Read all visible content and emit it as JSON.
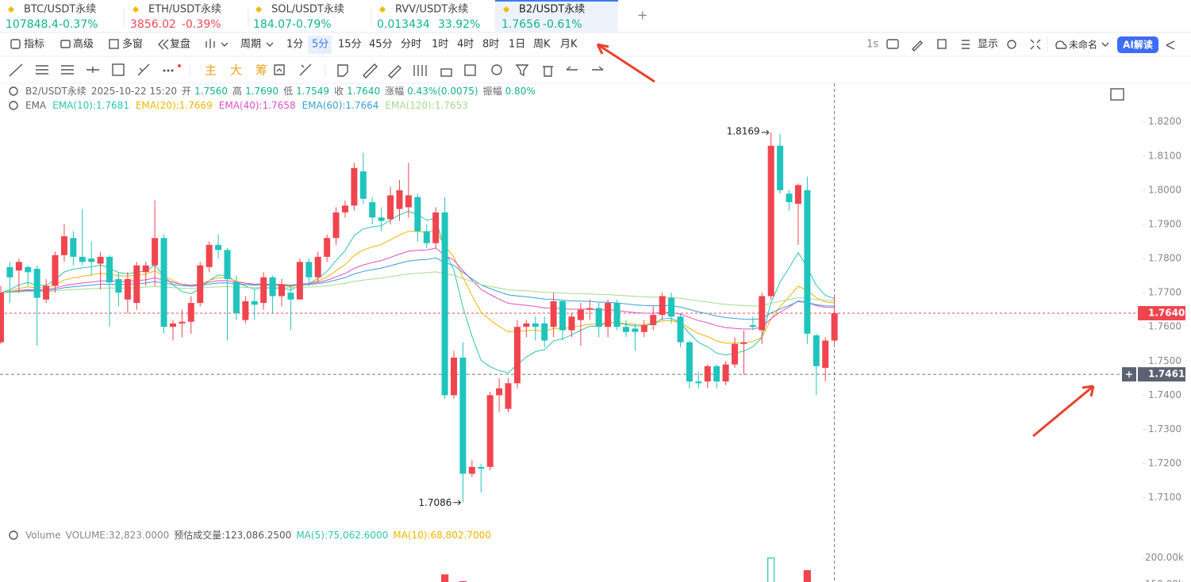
{
  "tabs": [
    {
      "symbol": "BTC/USDT永续",
      "price": "107848.4",
      "change": "-0.37%",
      "color": "#12b28c"
    },
    {
      "symbol": "ETH/USDT永续",
      "price": "3856.02",
      "change": "-0.39%",
      "color": "#ef4a55"
    },
    {
      "symbol": "SOL/USDT永续",
      "price": "184.07",
      "change": "-0.79%",
      "color": "#12b28c"
    },
    {
      "symbol": "RVV/USDT永续",
      "price": "0.013434",
      "change": "33.92%",
      "color": "#12b28c"
    },
    {
      "symbol": "B2/USDT永续",
      "price": "1.7656",
      "change": "-0.61%",
      "color": "#12b28c"
    }
  ],
  "active_tab": 4,
  "toolbar": [
    "指标",
    "高级",
    "多窗",
    "复盘"
  ],
  "period_menu": "周期",
  "periods": [
    "1分",
    "5分",
    "15分",
    "45分",
    "分时",
    "1时",
    "4时",
    "8时",
    "1日",
    "周K",
    "月K"
  ],
  "active_period": 1,
  "toolbar_right": {
    "interval": "1s",
    "display": "显示",
    "layout": "未命名",
    "ai": "AI解读"
  },
  "tools": [
    "主",
    "大",
    "筹"
  ],
  "info": {
    "symbol": "B2/USDT永续",
    "datetime": "2025-10-22 15:20",
    "items": [
      {
        "label": "开",
        "value": "1.7560"
      },
      {
        "label": "高",
        "value": "1.7690"
      },
      {
        "label": "低",
        "value": "1.7549"
      },
      {
        "label": "收",
        "value": "1.7640"
      },
      {
        "label": "涨幅",
        "value": "0.43%(0.0075)"
      },
      {
        "label": "振幅",
        "value": "0.80%"
      }
    ]
  },
  "ema_title": "EMA",
  "ema": [
    {
      "label": "EMA(10):1.7681",
      "period": 10,
      "color": "#2fc4b0"
    },
    {
      "label": "EMA(20):1.7669",
      "period": 20,
      "color": "#f2b400"
    },
    {
      "label": "EMA(40):1.7658",
      "period": 40,
      "color": "#de4fc8"
    },
    {
      "label": "EMA(60):1.7664",
      "period": 60,
      "color": "#3a9ed8"
    },
    {
      "label": "EMA(120):1.7653",
      "period": 120,
      "color": "#a9d98f"
    }
  ],
  "chart": {
    "up_color": "#f0454f",
    "down_color": "#1fc4bd",
    "ylim": [
      1.7025,
      1.8313
    ],
    "yticks": [
      {
        "value": 1.82,
        "label": "1.8200"
      },
      {
        "value": 1.81,
        "label": "1.8100"
      },
      {
        "value": 1.8,
        "label": "1.8000"
      },
      {
        "value": 1.79,
        "label": "1.7900"
      },
      {
        "value": 1.78,
        "label": "1.7800"
      },
      {
        "value": 1.77,
        "label": "1.7700"
      },
      {
        "value": 1.76,
        "label": "1.7600"
      },
      {
        "value": 1.75,
        "label": "1.7500"
      },
      {
        "value": 1.74,
        "label": "1.7400"
      },
      {
        "value": 1.73,
        "label": "1.7300"
      },
      {
        "value": 1.72,
        "label": "1.7200"
      },
      {
        "value": 1.71,
        "label": "1.7100"
      }
    ],
    "candles": [
      [
        1.7555,
        1.772,
        1.755,
        1.77
      ],
      [
        1.7775,
        1.779,
        1.767,
        1.7745
      ],
      [
        1.7765,
        1.78,
        1.77,
        1.779
      ],
      [
        1.7775,
        1.778,
        1.772,
        1.776
      ],
      [
        1.777,
        1.778,
        1.7545,
        1.7685
      ],
      [
        1.768,
        1.774,
        1.767,
        1.772
      ],
      [
        1.772,
        1.782,
        1.77,
        1.781
      ],
      [
        1.781,
        1.79,
        1.779,
        1.7865
      ],
      [
        1.786,
        1.788,
        1.778,
        1.7805
      ],
      [
        1.7805,
        1.7945,
        1.778,
        1.779
      ],
      [
        1.78,
        1.785,
        1.775,
        1.779
      ],
      [
        1.7785,
        1.782,
        1.771,
        1.7805
      ],
      [
        1.7805,
        1.781,
        1.76,
        1.773
      ],
      [
        1.774,
        1.776,
        1.766,
        1.77
      ],
      [
        1.768,
        1.776,
        1.764,
        1.774
      ],
      [
        1.767,
        1.779,
        1.765,
        1.778
      ],
      [
        1.776,
        1.779,
        1.772,
        1.778
      ],
      [
        1.778,
        1.797,
        1.772,
        1.786
      ],
      [
        1.786,
        1.787,
        1.758,
        1.76
      ],
      [
        1.76,
        1.762,
        1.756,
        1.761
      ],
      [
        1.761,
        1.765,
        1.757,
        1.7615
      ],
      [
        1.7615,
        1.769,
        1.758,
        1.767
      ],
      [
        1.767,
        1.779,
        1.766,
        1.778
      ],
      [
        1.7775,
        1.785,
        1.776,
        1.784
      ],
      [
        1.784,
        1.787,
        1.78,
        1.7825
      ],
      [
        1.7825,
        1.783,
        1.756,
        1.774
      ],
      [
        1.773,
        1.775,
        1.762,
        1.764
      ],
      [
        1.762,
        1.769,
        1.761,
        1.7675
      ],
      [
        1.7675,
        1.771,
        1.762,
        1.7665
      ],
      [
        1.767,
        1.776,
        1.765,
        1.7745
      ],
      [
        1.7745,
        1.775,
        1.764,
        1.769
      ],
      [
        1.769,
        1.774,
        1.766,
        1.7725
      ],
      [
        1.77,
        1.772,
        1.759,
        1.768
      ],
      [
        1.768,
        1.78,
        1.768,
        1.779
      ],
      [
        1.779,
        1.78,
        1.772,
        1.7745
      ],
      [
        1.7745,
        1.782,
        1.773,
        1.7805
      ],
      [
        1.7805,
        1.787,
        1.779,
        1.786
      ],
      [
        1.786,
        1.795,
        1.784,
        1.7935
      ],
      [
        1.7935,
        1.797,
        1.792,
        1.7955
      ],
      [
        1.7955,
        1.808,
        1.794,
        1.8065
      ],
      [
        1.8055,
        1.811,
        1.796,
        1.7975
      ],
      [
        1.7965,
        1.798,
        1.79,
        1.792
      ],
      [
        1.792,
        1.795,
        1.788,
        1.791
      ],
      [
        1.7915,
        1.801,
        1.79,
        1.7985
      ],
      [
        1.7945,
        1.803,
        1.791,
        1.8
      ],
      [
        1.795,
        1.808,
        1.792,
        1.7985
      ],
      [
        1.798,
        1.799,
        1.785,
        1.788
      ],
      [
        1.788,
        1.79,
        1.783,
        1.7845
      ],
      [
        1.7845,
        1.795,
        1.783,
        1.7935
      ],
      [
        1.7935,
        1.798,
        1.739,
        1.74
      ],
      [
        1.74,
        1.753,
        1.739,
        1.751
      ],
      [
        1.751,
        1.7555,
        1.7086,
        1.717
      ],
      [
        1.717,
        1.721,
        1.716,
        1.719
      ],
      [
        1.719,
        1.72,
        1.7115,
        1.7185
      ],
      [
        1.719,
        1.741,
        1.718,
        1.74
      ],
      [
        1.74,
        1.745,
        1.735,
        1.742
      ],
      [
        1.736,
        1.745,
        1.735,
        1.7435
      ],
      [
        1.7435,
        1.762,
        1.742,
        1.76
      ],
      [
        1.76,
        1.762,
        1.757,
        1.761
      ],
      [
        1.761,
        1.763,
        1.756,
        1.76
      ],
      [
        1.761,
        1.763,
        1.754,
        1.756
      ],
      [
        1.76,
        1.77,
        1.757,
        1.7675
      ],
      [
        1.7675,
        1.768,
        1.756,
        1.759
      ],
      [
        1.759,
        1.764,
        1.757,
        1.763
      ],
      [
        1.762,
        1.767,
        1.7545,
        1.765
      ],
      [
        1.765,
        1.768,
        1.762,
        1.7655
      ],
      [
        1.7655,
        1.767,
        1.757,
        1.76
      ],
      [
        1.76,
        1.768,
        1.757,
        1.767
      ],
      [
        1.767,
        1.768,
        1.759,
        1.76
      ],
      [
        1.76,
        1.762,
        1.757,
        1.7585
      ],
      [
        1.7595,
        1.761,
        1.753,
        1.7585
      ],
      [
        1.7585,
        1.762,
        1.757,
        1.7605
      ],
      [
        1.7605,
        1.766,
        1.759,
        1.7635
      ],
      [
        1.7635,
        1.77,
        1.762,
        1.769
      ],
      [
        1.7685,
        1.77,
        1.761,
        1.763
      ],
      [
        1.763,
        1.764,
        1.754,
        1.7555
      ],
      [
        1.7555,
        1.756,
        1.742,
        1.744
      ],
      [
        1.744,
        1.747,
        1.742,
        1.7435
      ],
      [
        1.744,
        1.749,
        1.742,
        1.7485
      ],
      [
        1.7485,
        1.749,
        1.742,
        1.744
      ],
      [
        1.744,
        1.75,
        1.743,
        1.749
      ],
      [
        1.749,
        1.757,
        1.748,
        1.755
      ],
      [
        1.755,
        1.759,
        1.746,
        1.7555
      ],
      [
        1.7605,
        1.763,
        1.759,
        1.76
      ],
      [
        1.759,
        1.77,
        1.755,
        1.769
      ],
      [
        1.769,
        1.8169,
        1.768,
        1.813
      ],
      [
        1.813,
        1.8165,
        1.799,
        1.8
      ],
      [
        1.799,
        1.8,
        1.794,
        1.7965
      ],
      [
        1.796,
        1.802,
        1.784,
        1.8015
      ],
      [
        1.8,
        1.804,
        1.755,
        1.758
      ],
      [
        1.7575,
        1.758,
        1.74,
        1.7485
      ],
      [
        1.748,
        1.757,
        1.744,
        1.756
      ],
      [
        1.756,
        1.769,
        1.7549,
        1.764
      ]
    ],
    "max_index": 85,
    "min_index": 51,
    "last_price": {
      "value": 1.764,
      "label": "1.7640"
    },
    "crosshair_price": 1.7461,
    "crosshair_index": 92
  },
  "volume": {
    "title": "Volume",
    "items": [
      {
        "text": "VOLUME:32,823.0000",
        "color": "#888888"
      },
      {
        "text": "预估成交量:123,086.2500",
        "color": "#555555"
      },
      {
        "text": "MA(5):75,062.6000",
        "color": "#2fc4b0"
      },
      {
        "text": "MA(10):68,802.7000",
        "color": "#f2b400"
      }
    ],
    "ylim": [
      100000,
      266000
    ],
    "yticks": [
      {
        "value": 200000,
        "label": "200.00k"
      },
      {
        "value": 150000,
        "label": "150.00k"
      }
    ],
    "bars": [
      {
        "index": 49,
        "value": 168000,
        "color": "#f0454f",
        "hollow": false
      },
      {
        "index": 51,
        "value": 155000,
        "color": "#f0454f",
        "hollow": false
      },
      {
        "index": 54,
        "value": 153000,
        "color": "#1fc4bd",
        "hollow": true
      },
      {
        "index": 85,
        "value": 200000,
        "color": "#1fc4bd",
        "hollow": true
      },
      {
        "index": 89,
        "value": 176000,
        "color": "#f0454f",
        "hollow": false
      }
    ]
  }
}
